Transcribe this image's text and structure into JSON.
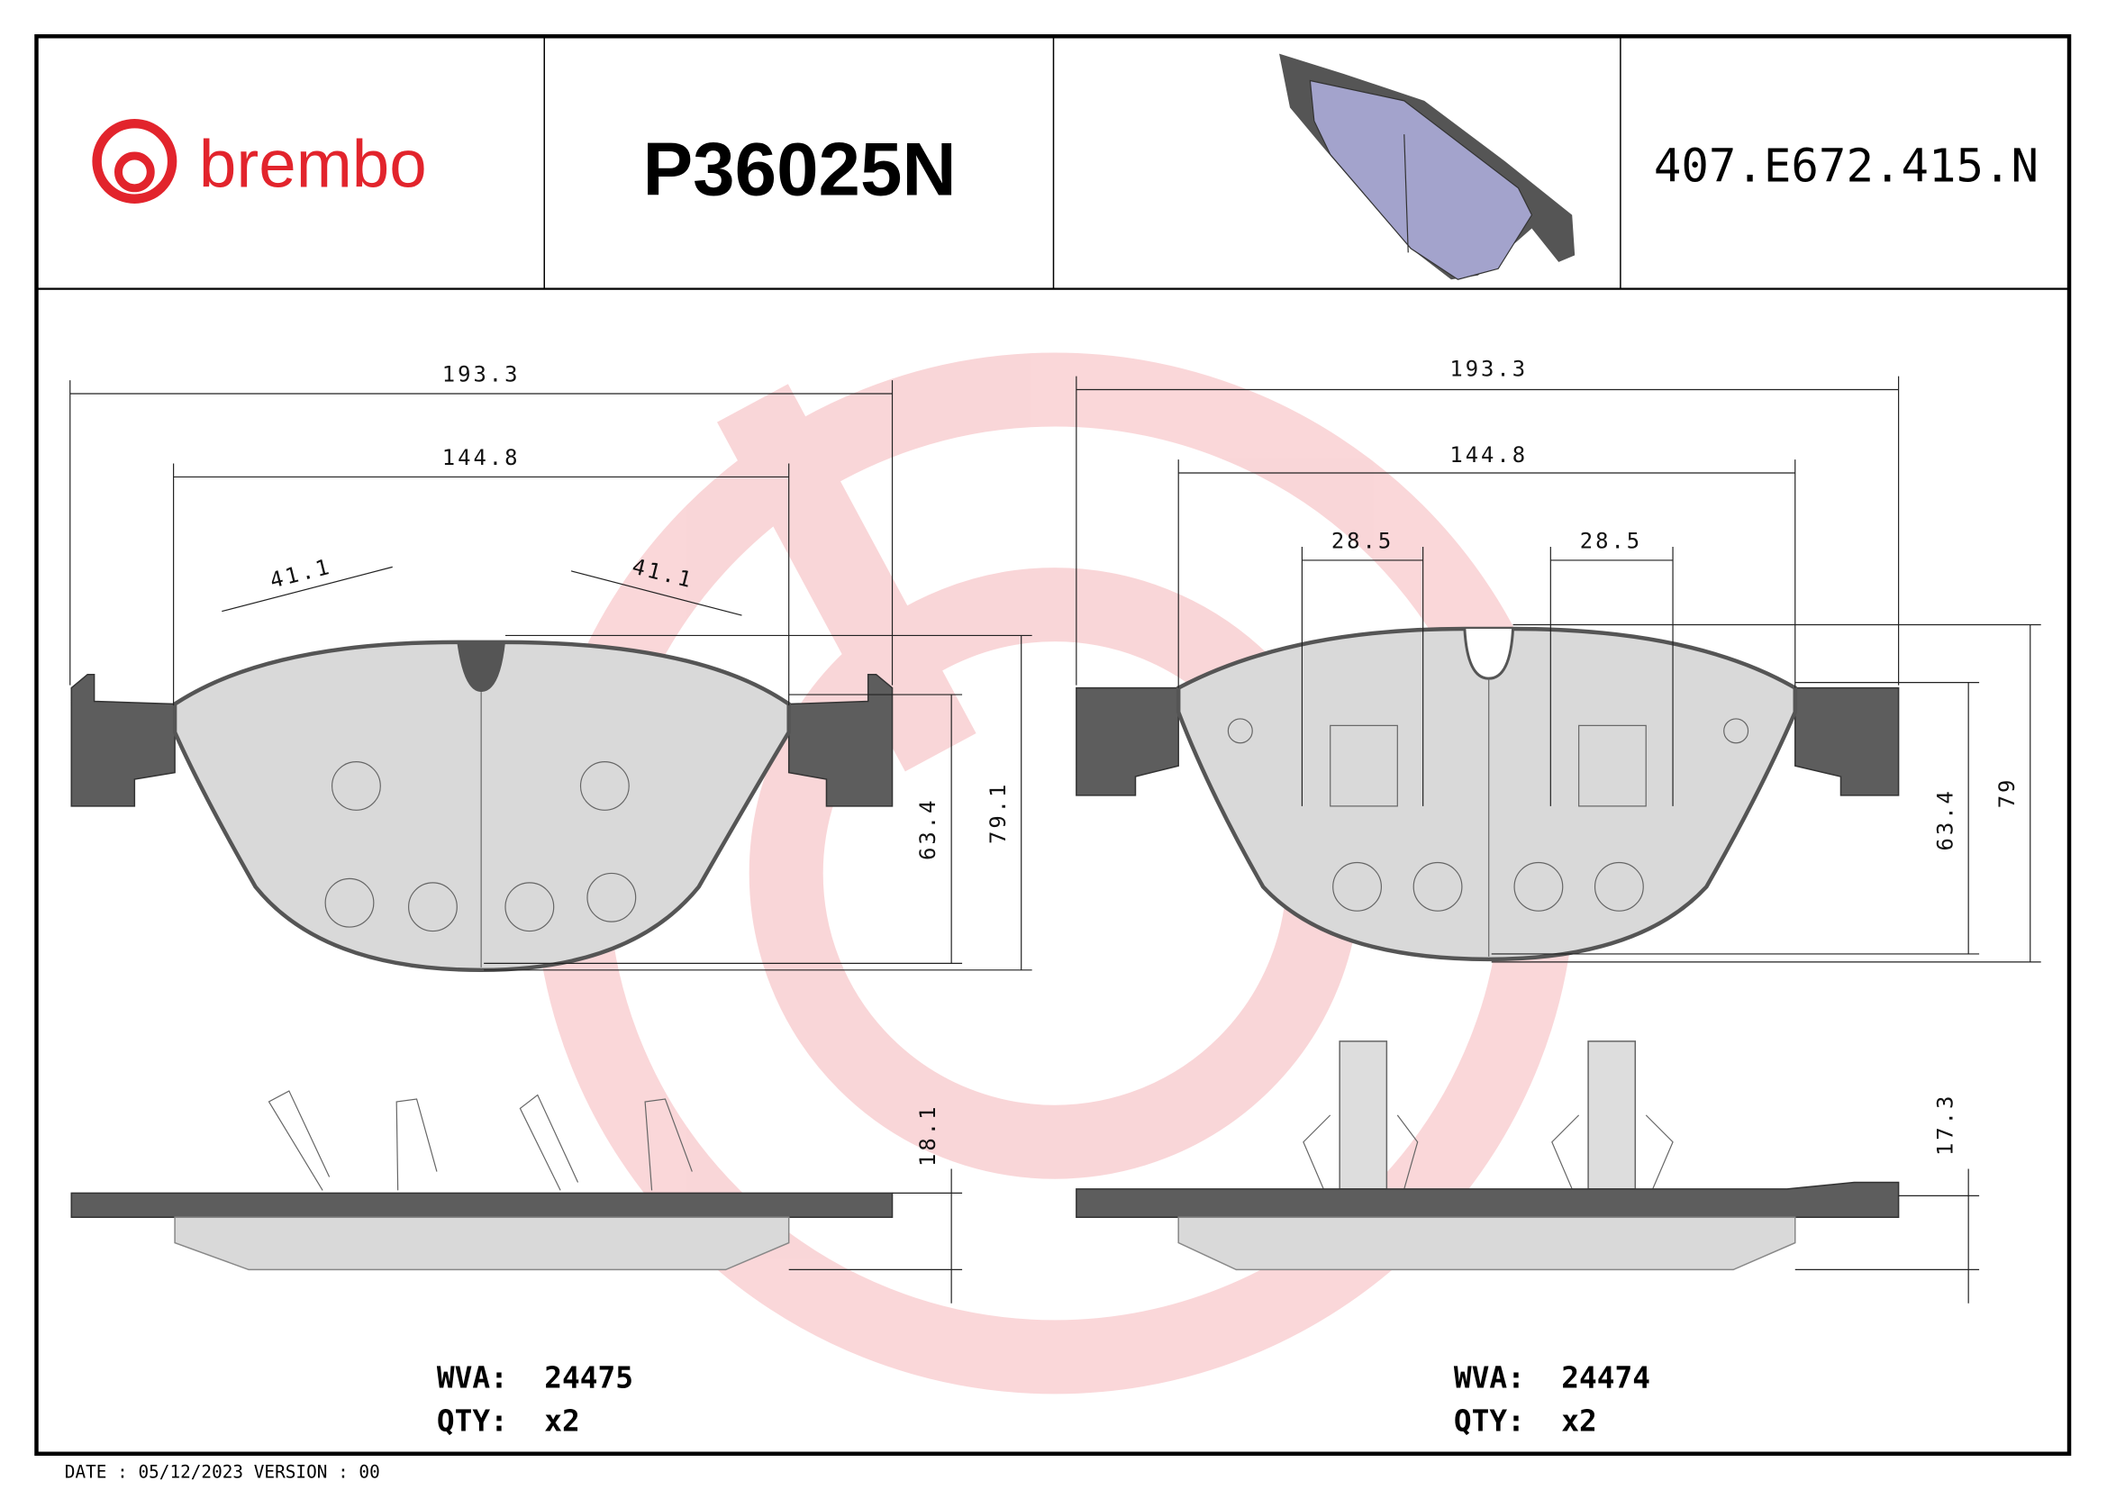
{
  "header": {
    "brand": "brembo",
    "part_number": "P36025N",
    "reference_code": "407.E672.415.N",
    "brand_color": "#e2242c"
  },
  "left_pad": {
    "dims": {
      "overall_width": "193.3",
      "friction_width": "144.8",
      "clip_left": "41.1",
      "clip_right": "41.1",
      "friction_height": "63.4",
      "overall_height": "79.1",
      "thickness": "18.1"
    },
    "wva_label": "WVA:",
    "wva": "24475",
    "qty_label": "QTY:",
    "qty": "x2"
  },
  "right_pad": {
    "dims": {
      "overall_width": "193.3",
      "friction_width": "144.8",
      "sensor_left": "28.5",
      "sensor_right": "28.5",
      "friction_height": "63.4",
      "overall_height": "79",
      "thickness": "17.3"
    },
    "wva_label": "WVA:",
    "wva": "24474",
    "qty_label": "QTY:",
    "qty": "x2"
  },
  "footer": {
    "date_text": "DATE : 05/12/2023 VERSION : 00"
  }
}
